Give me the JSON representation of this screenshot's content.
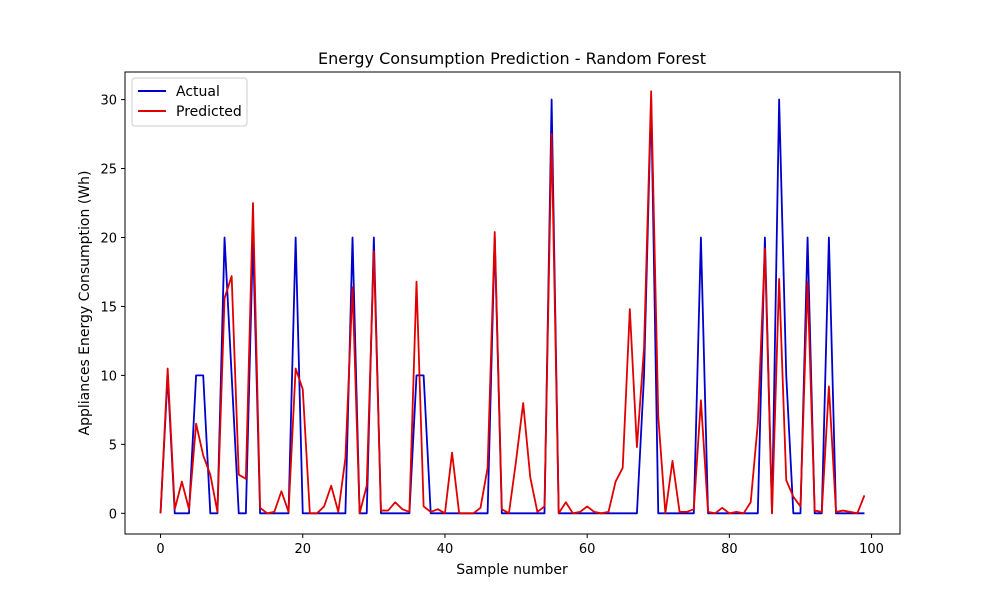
{
  "chart_data": {
    "type": "line",
    "title": "Energy Consumption Prediction - Random Forest",
    "xlabel": "Sample number",
    "ylabel": "Appliances Energy Consumption (Wh)",
    "xlim": [
      -5,
      104
    ],
    "ylim": [
      -1.5,
      32
    ],
    "xticks": [
      0,
      20,
      40,
      60,
      80,
      100
    ],
    "yticks": [
      0,
      5,
      10,
      15,
      20,
      25,
      30
    ],
    "grid": false,
    "legend_position": "top-left",
    "series": [
      {
        "name": "Actual",
        "color": "#0000cc",
        "values": [
          0,
          10,
          0,
          0,
          0,
          10,
          10,
          0,
          0,
          20,
          10,
          0,
          0,
          20,
          0,
          0,
          0,
          0,
          0,
          20,
          0,
          0,
          0,
          0,
          0,
          0,
          0,
          20,
          0,
          0,
          20,
          0,
          0,
          0,
          0,
          0,
          10,
          10,
          0,
          0,
          0,
          0,
          0,
          0,
          0,
          0,
          0,
          20,
          0,
          0,
          0,
          0,
          0,
          0,
          0,
          30,
          0,
          0,
          0,
          0,
          0,
          0,
          0,
          0,
          0,
          0,
          0,
          0,
          10,
          30,
          0,
          0,
          0,
          0,
          0,
          0,
          20,
          0,
          0,
          0,
          0,
          0,
          0,
          0,
          0,
          20,
          0,
          30,
          10,
          0,
          0,
          20,
          0,
          0,
          20,
          0,
          0,
          0,
          0,
          0
        ]
      },
      {
        "name": "Predicted",
        "color": "#e00000",
        "values": [
          0,
          10.5,
          0.3,
          2.3,
          0.3,
          6.5,
          4.2,
          2.8,
          0.1,
          15.6,
          17.2,
          2.8,
          2.5,
          22.5,
          0.4,
          0,
          0.1,
          1.6,
          0.1,
          10.5,
          9.0,
          0,
          0,
          0.5,
          2.0,
          0.1,
          4.0,
          16.4,
          0,
          2.0,
          19.0,
          0.2,
          0.2,
          0.8,
          0.3,
          0.1,
          16.8,
          0.5,
          0.1,
          0.3,
          0,
          4.4,
          0,
          0,
          0,
          0.4,
          3.3,
          20.4,
          0.3,
          0,
          3.8,
          8.0,
          2.6,
          0.1,
          0.5,
          27.5,
          0,
          0.8,
          0,
          0.1,
          0.5,
          0.1,
          0,
          0.1,
          2.3,
          3.3,
          14.8,
          4.8,
          12.0,
          30.6,
          7.0,
          0,
          3.8,
          0.1,
          0.1,
          0.3,
          8.2,
          0.1,
          0,
          0.4,
          0,
          0.1,
          0,
          0.8,
          6.5,
          19.2,
          0,
          17.0,
          2.4,
          1.2,
          0.5,
          16.8,
          0.2,
          0.1,
          9.2,
          0.1,
          0.2,
          0.1,
          0,
          1.3
        ]
      }
    ]
  }
}
